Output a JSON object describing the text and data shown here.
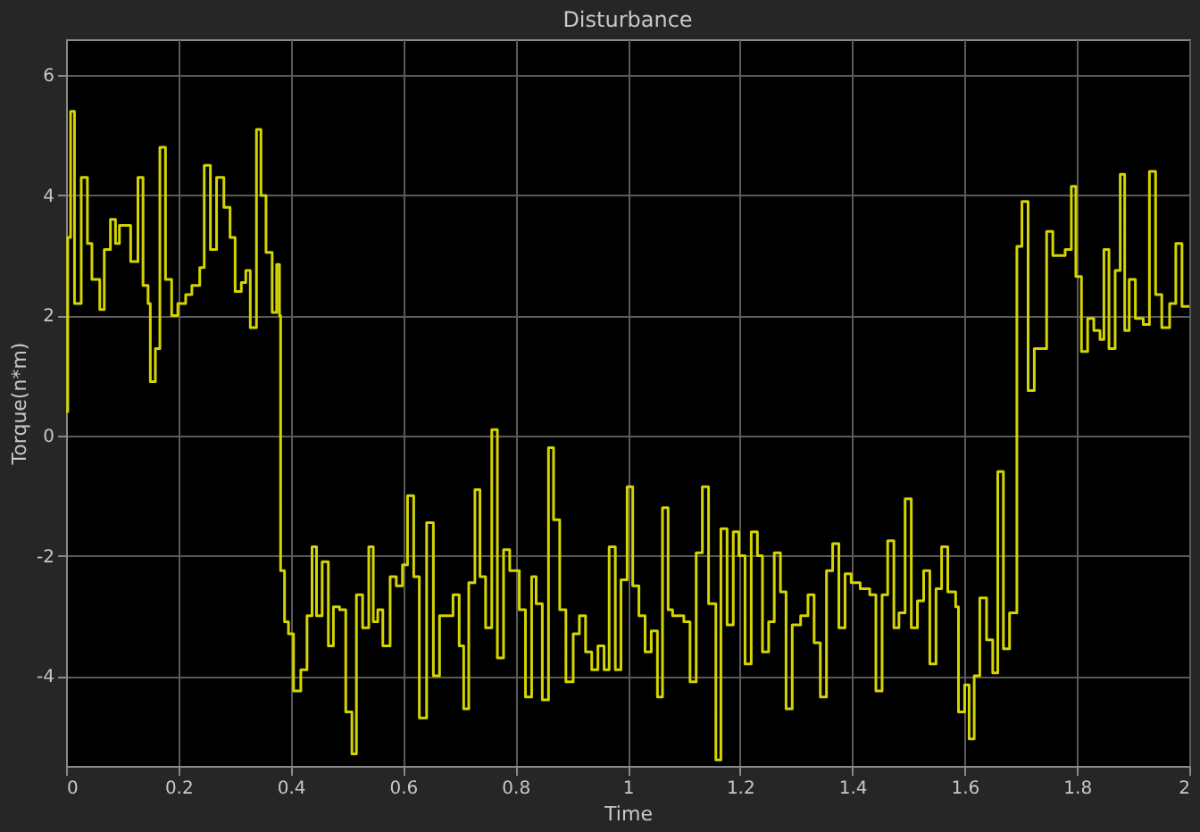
{
  "chart_data": {
    "type": "step",
    "title": "Disturbance",
    "xlabel": "Time",
    "ylabel": "Torque(n*m)",
    "xlim": [
      0,
      2
    ],
    "ylim": [
      -5.5,
      6.6
    ],
    "xticks": [
      0,
      0.2,
      0.4,
      0.6,
      0.8,
      1,
      1.2,
      1.4,
      1.6,
      1.8,
      2
    ],
    "yticks": [
      -4,
      -2,
      0,
      2,
      4,
      6
    ],
    "grid": true,
    "legend": false,
    "line_style": "solid",
    "marker": "none",
    "series": [
      {
        "color": "#d4d400",
        "x": [
          0,
          0.003,
          0.008,
          0.015,
          0.027,
          0.038,
          0.046,
          0.06,
          0.068,
          0.079,
          0.088,
          0.095,
          0.115,
          0.128,
          0.137,
          0.146,
          0.15,
          0.159,
          0.167,
          0.177,
          0.188,
          0.199,
          0.213,
          0.224,
          0.238,
          0.246,
          0.257,
          0.268,
          0.281,
          0.292,
          0.301,
          0.312,
          0.32,
          0.328,
          0.339,
          0.347,
          0.356,
          0.367,
          0.375,
          0.38,
          0.382,
          0.389,
          0.396,
          0.405,
          0.418,
          0.429,
          0.438,
          0.446,
          0.456,
          0.467,
          0.476,
          0.487,
          0.498,
          0.509,
          0.517,
          0.528,
          0.539,
          0.547,
          0.555,
          0.564,
          0.577,
          0.588,
          0.599,
          0.608,
          0.619,
          0.629,
          0.642,
          0.654,
          0.665,
          0.689,
          0.7,
          0.708,
          0.717,
          0.728,
          0.737,
          0.747,
          0.758,
          0.768,
          0.779,
          0.79,
          0.807,
          0.818,
          0.829,
          0.837,
          0.848,
          0.859,
          0.868,
          0.879,
          0.89,
          0.903,
          0.914,
          0.925,
          0.936,
          0.947,
          0.958,
          0.967,
          0.978,
          0.988,
          0.999,
          1.009,
          1.02,
          1.031,
          1.042,
          1.053,
          1.062,
          1.072,
          1.08,
          1.089,
          1.1,
          1.111,
          1.122,
          1.133,
          1.144,
          1.157,
          1.166,
          1.177,
          1.188,
          1.198,
          1.209,
          1.22,
          1.231,
          1.24,
          1.251,
          1.261,
          1.272,
          1.282,
          1.293,
          1.308,
          1.321,
          1.332,
          1.343,
          1.354,
          1.365,
          1.376,
          1.387,
          1.398,
          1.414,
          1.431,
          1.442,
          1.453,
          1.463,
          1.474,
          1.483,
          1.494,
          1.505,
          1.516,
          1.527,
          1.538,
          1.549,
          1.559,
          1.57,
          1.584,
          1.589,
          1.6,
          1.608,
          1.617,
          1.627,
          1.639,
          1.65,
          1.659,
          1.669,
          1.68,
          1.693,
          1.702,
          1.713,
          1.724,
          1.746,
          1.757,
          1.779,
          1.79,
          1.798,
          1.808,
          1.819,
          1.83,
          1.841,
          1.848,
          1.857,
          1.868,
          1.877,
          1.885,
          1.893,
          1.904,
          1.918,
          1.929,
          1.94,
          1.951,
          1.965,
          1.976,
          1.987,
          2
        ],
        "values": [
          0.4,
          3.3,
          5.4,
          2.2,
          4.3,
          3.2,
          2.6,
          2.1,
          3.1,
          3.6,
          3.2,
          3.5,
          2.9,
          4.3,
          2.5,
          2.2,
          0.9,
          1.45,
          4.8,
          2.6,
          2.0,
          2.2,
          2.35,
          2.5,
          2.8,
          4.5,
          3.1,
          4.3,
          3.8,
          3.3,
          2.4,
          2.55,
          2.75,
          1.8,
          5.1,
          4.0,
          3.05,
          2.05,
          2.85,
          2.0,
          -2.25,
          -3.1,
          -3.3,
          -4.25,
          -3.9,
          -3.0,
          -1.85,
          -3.0,
          -2.1,
          -3.5,
          -2.85,
          -2.9,
          -4.6,
          -5.3,
          -2.65,
          -3.2,
          -1.85,
          -3.1,
          -2.9,
          -3.5,
          -2.35,
          -2.5,
          -2.15,
          -1.0,
          -2.35,
          -4.7,
          -1.45,
          -4.0,
          -3.0,
          -2.65,
          -3.5,
          -4.55,
          -2.45,
          -0.9,
          -2.35,
          -3.2,
          0.1,
          -3.7,
          -1.9,
          -2.25,
          -2.9,
          -4.35,
          -2.35,
          -2.8,
          -4.4,
          -0.2,
          -1.4,
          -2.9,
          -4.1,
          -3.3,
          -3.0,
          -3.6,
          -3.9,
          -3.5,
          -3.9,
          -1.85,
          -3.9,
          -2.4,
          -0.85,
          -2.5,
          -3.0,
          -3.6,
          -3.25,
          -4.35,
          -1.2,
          -2.9,
          -3.0,
          -3.0,
          -3.1,
          -4.1,
          -1.95,
          -0.85,
          -2.8,
          -5.4,
          -1.55,
          -3.15,
          -1.6,
          -2.0,
          -3.8,
          -1.6,
          -2.0,
          -3.6,
          -3.1,
          -1.95,
          -2.6,
          -4.55,
          -3.15,
          -3.0,
          -2.65,
          -3.45,
          -4.35,
          -2.25,
          -1.8,
          -3.2,
          -2.3,
          -2.45,
          -2.55,
          -2.65,
          -4.25,
          -2.65,
          -1.75,
          -3.2,
          -2.95,
          -1.05,
          -3.2,
          -2.75,
          -2.25,
          -3.8,
          -2.55,
          -1.85,
          -2.6,
          -2.85,
          -4.6,
          -4.15,
          -5.05,
          -4.0,
          -2.7,
          -3.4,
          -3.95,
          -0.6,
          -3.55,
          -2.95,
          3.15,
          3.9,
          0.75,
          1.45,
          3.4,
          3.0,
          3.1,
          4.15,
          2.65,
          1.4,
          1.95,
          1.75,
          1.6,
          3.1,
          1.45,
          2.75,
          4.35,
          1.75,
          2.6,
          1.95,
          1.85,
          4.4,
          2.35,
          1.8,
          2.2,
          3.2,
          2.15,
          2.15
        ]
      }
    ]
  }
}
